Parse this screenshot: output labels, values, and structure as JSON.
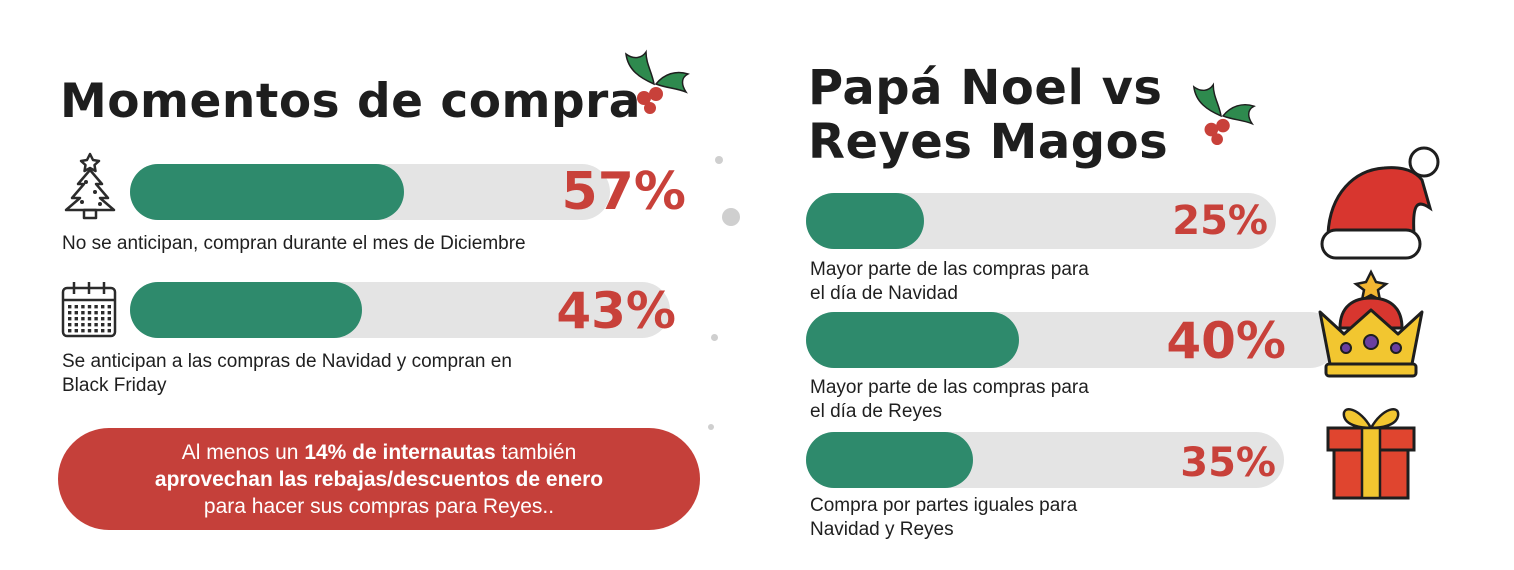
{
  "colors": {
    "bar_fill": "#2e8a6c",
    "bar_track": "#e4e4e4",
    "percent_text": "#c8413a",
    "banner_bg": "#c5403a",
    "holly_leaf": "#2e8a4e",
    "holly_berry": "#c8413a"
  },
  "icons": {
    "holly_left": "holly-icon",
    "holly_right": "holly-icon",
    "tree": "christmas-tree-icon",
    "calendar": "calendar-icon",
    "santa_hat": "santa-hat-icon",
    "crown": "crown-icon",
    "gift": "gift-icon"
  },
  "chart_data": [
    {
      "type": "bar",
      "title": "Momentos de compra",
      "unit": "%",
      "ylim": [
        0,
        100
      ],
      "categories": [
        "No se anticipan, compran durante el mes de Diciembre",
        "Se anticipan a las compras de Navidad y compran en Black Friday"
      ],
      "values": [
        57,
        43
      ],
      "value_labels": [
        "57%",
        "43%"
      ]
    },
    {
      "type": "bar",
      "title": "Papá Noel vs Reyes Magos",
      "title_lines": [
        "Papá Noel vs",
        "Reyes Magos"
      ],
      "unit": "%",
      "ylim": [
        0,
        100
      ],
      "categories": [
        "Mayor parte de las compras para el día de Navidad",
        "Mayor parte de las compras para el día de Reyes",
        "Compra por partes iguales para Navidad y Reyes"
      ],
      "values": [
        25,
        40,
        35
      ],
      "value_labels": [
        "25%",
        "40%",
        "35%"
      ]
    }
  ],
  "labels": {
    "left": [
      [
        "No se anticipan, compran durante el mes de Diciembre"
      ],
      [
        "Se anticipan a las compras de Navidad y compran en",
        "Black Friday"
      ]
    ],
    "right": [
      [
        "Mayor parte de las compras para",
        "el día de Navidad"
      ],
      [
        "Mayor parte de las compras para",
        "el día de Reyes"
      ],
      [
        "Compra por partes iguales para",
        "Navidad y Reyes"
      ]
    ]
  },
  "banner": {
    "line1_pre": "Al menos un ",
    "line1_bold": "14% de internautas",
    "line1_post": " también",
    "line2_bold": "aprovechan las rebajas/descuentos de enero",
    "line3": "para hacer sus compras para Reyes.."
  }
}
